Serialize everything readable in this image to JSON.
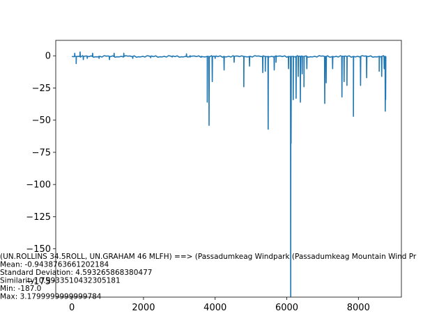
{
  "chart_data": {
    "type": "line",
    "title": "",
    "xlabel": "",
    "ylabel": "",
    "xlim": [
      -450,
      9200
    ],
    "ylim": [
      -187.5,
      12
    ],
    "grid": false,
    "x_ticks": [
      0,
      2000,
      4000,
      6000,
      8000
    ],
    "y_ticks": [
      0,
      -25,
      -50,
      -75,
      -100,
      -125,
      -150,
      -175
    ],
    "x_tick_labels": [
      "0",
      "2000",
      "4000",
      "6000",
      "8000"
    ],
    "y_tick_labels": [
      "0",
      "−25",
      "−50",
      "−75",
      "−100",
      "−125",
      "−150",
      "−175"
    ],
    "series": [
      {
        "color": "#1f77b4",
        "baseline": -0.5,
        "x_start": 0,
        "x_end": 8760,
        "spikes": [
          [
            80,
            2
          ],
          [
            120,
            -6
          ],
          [
            230,
            3
          ],
          [
            320,
            -3
          ],
          [
            430,
            -2
          ],
          [
            580,
            2
          ],
          [
            760,
            -2
          ],
          [
            1050,
            -3
          ],
          [
            1180,
            2
          ],
          [
            1450,
            2
          ],
          [
            1700,
            -2
          ],
          [
            2200,
            -1.5
          ],
          [
            2800,
            -1
          ],
          [
            3200,
            1.5
          ],
          [
            3300,
            -1
          ],
          [
            3620,
            -1
          ],
          [
            3780,
            -36
          ],
          [
            3830,
            -54
          ],
          [
            3920,
            -20
          ],
          [
            4000,
            -2
          ],
          [
            4250,
            -11
          ],
          [
            4530,
            -5
          ],
          [
            4800,
            -24
          ],
          [
            4960,
            -8
          ],
          [
            5330,
            -13
          ],
          [
            5400,
            -12
          ],
          [
            5480,
            -57
          ],
          [
            5650,
            -11
          ],
          [
            5700,
            -5
          ],
          [
            6050,
            -10
          ],
          [
            6110,
            -187
          ],
          [
            6120,
            -68
          ],
          [
            6180,
            -34
          ],
          [
            6260,
            -33
          ],
          [
            6320,
            -16
          ],
          [
            6380,
            -36
          ],
          [
            6430,
            -14
          ],
          [
            6480,
            -24
          ],
          [
            6560,
            -10
          ],
          [
            7060,
            -37
          ],
          [
            7100,
            -21
          ],
          [
            7280,
            -10
          ],
          [
            7540,
            -32
          ],
          [
            7600,
            -20
          ],
          [
            7680,
            -23
          ],
          [
            7860,
            -47
          ],
          [
            8060,
            -23
          ],
          [
            8230,
            -17
          ],
          [
            8580,
            -12
          ],
          [
            8650,
            -16
          ],
          [
            8720,
            -10
          ],
          [
            8750,
            -43
          ],
          [
            8760,
            -34
          ]
        ]
      }
    ],
    "annotation": {
      "lines": [
        "(UN.ROLLINS 34.5ROLL, UN.GRAHAM  46  MLFH) ==> (Passadumkeag Windpark (Passadumkeag Mountain Wind Pr",
        "Mean: -0.9438763661202184",
        "Standard Deviation: 4.593265868380477",
        "Similarity: 0.9933510432305181",
        "Min: -187.0",
        "Max: 3.1799999999999784"
      ]
    }
  }
}
